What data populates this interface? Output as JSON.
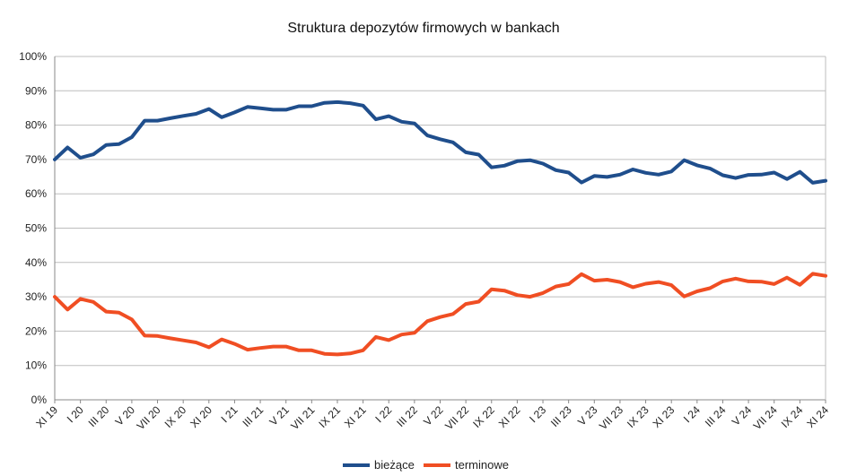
{
  "chart_data": {
    "type": "line",
    "title": "Struktura depozytów firmowych w bankach",
    "xlabel": "",
    "ylabel": "",
    "ylim": [
      0,
      100
    ],
    "y_ticks": [
      "0%",
      "10%",
      "20%",
      "30%",
      "40%",
      "50%",
      "60%",
      "70%",
      "80%",
      "90%",
      "100%"
    ],
    "x_tick_labels": [
      "XI 19",
      "I 20",
      "III 20",
      "V 20",
      "VII 20",
      "IX 20",
      "XI 20",
      "I 21",
      "III 21",
      "V 21",
      "VII 21",
      "IX 21",
      "XI 21",
      "I 22",
      "III 22",
      "V 22",
      "VII 22",
      "IX 22",
      "XI 22",
      "I 23",
      "III 23",
      "V 23",
      "VII 23",
      "IX 23",
      "XI 23",
      "I 24",
      "III 24",
      "V 24",
      "VII 24",
      "IX 24",
      "XI 24"
    ],
    "grid": true,
    "legend_position": "bottom",
    "series": [
      {
        "name": "bieżące",
        "color": "#1f4e8c",
        "values": [
          70.0,
          73.5,
          70.5,
          71.5,
          74.2,
          74.5,
          76.5,
          81.3,
          81.3,
          82.0,
          82.7,
          83.3,
          84.7,
          82.3,
          83.7,
          85.3,
          84.9,
          84.5,
          84.5,
          85.5,
          85.5,
          86.5,
          86.7,
          86.4,
          85.7,
          81.7,
          82.6,
          81.0,
          80.5,
          77.0,
          75.9,
          75.0,
          72.1,
          71.4,
          67.7,
          68.2,
          69.5,
          69.8,
          68.8,
          66.9,
          66.2,
          63.3,
          65.2,
          64.9,
          65.6,
          67.1,
          66.1,
          65.6,
          66.5,
          69.8,
          68.3,
          67.4,
          65.4,
          64.6,
          65.5,
          65.6,
          66.2,
          64.3,
          66.4,
          63.2,
          63.8
        ]
      },
      {
        "name": "terminowe",
        "color": "#f04e23",
        "values": [
          30.0,
          26.3,
          29.4,
          28.5,
          25.7,
          25.4,
          23.4,
          18.7,
          18.6,
          17.9,
          17.3,
          16.7,
          15.3,
          17.6,
          16.3,
          14.6,
          15.1,
          15.5,
          15.5,
          14.4,
          14.4,
          13.4,
          13.2,
          13.5,
          14.4,
          18.3,
          17.4,
          19.0,
          19.5,
          22.9,
          24.1,
          25.0,
          27.9,
          28.6,
          32.2,
          31.8,
          30.5,
          30.0,
          31.1,
          33.0,
          33.7,
          36.6,
          34.7,
          35.0,
          34.3,
          32.8,
          33.8,
          34.3,
          33.4,
          30.1,
          31.6,
          32.5,
          34.5,
          35.3,
          34.5,
          34.4,
          33.7,
          35.6,
          33.5,
          36.7,
          36.1
        ]
      }
    ]
  }
}
